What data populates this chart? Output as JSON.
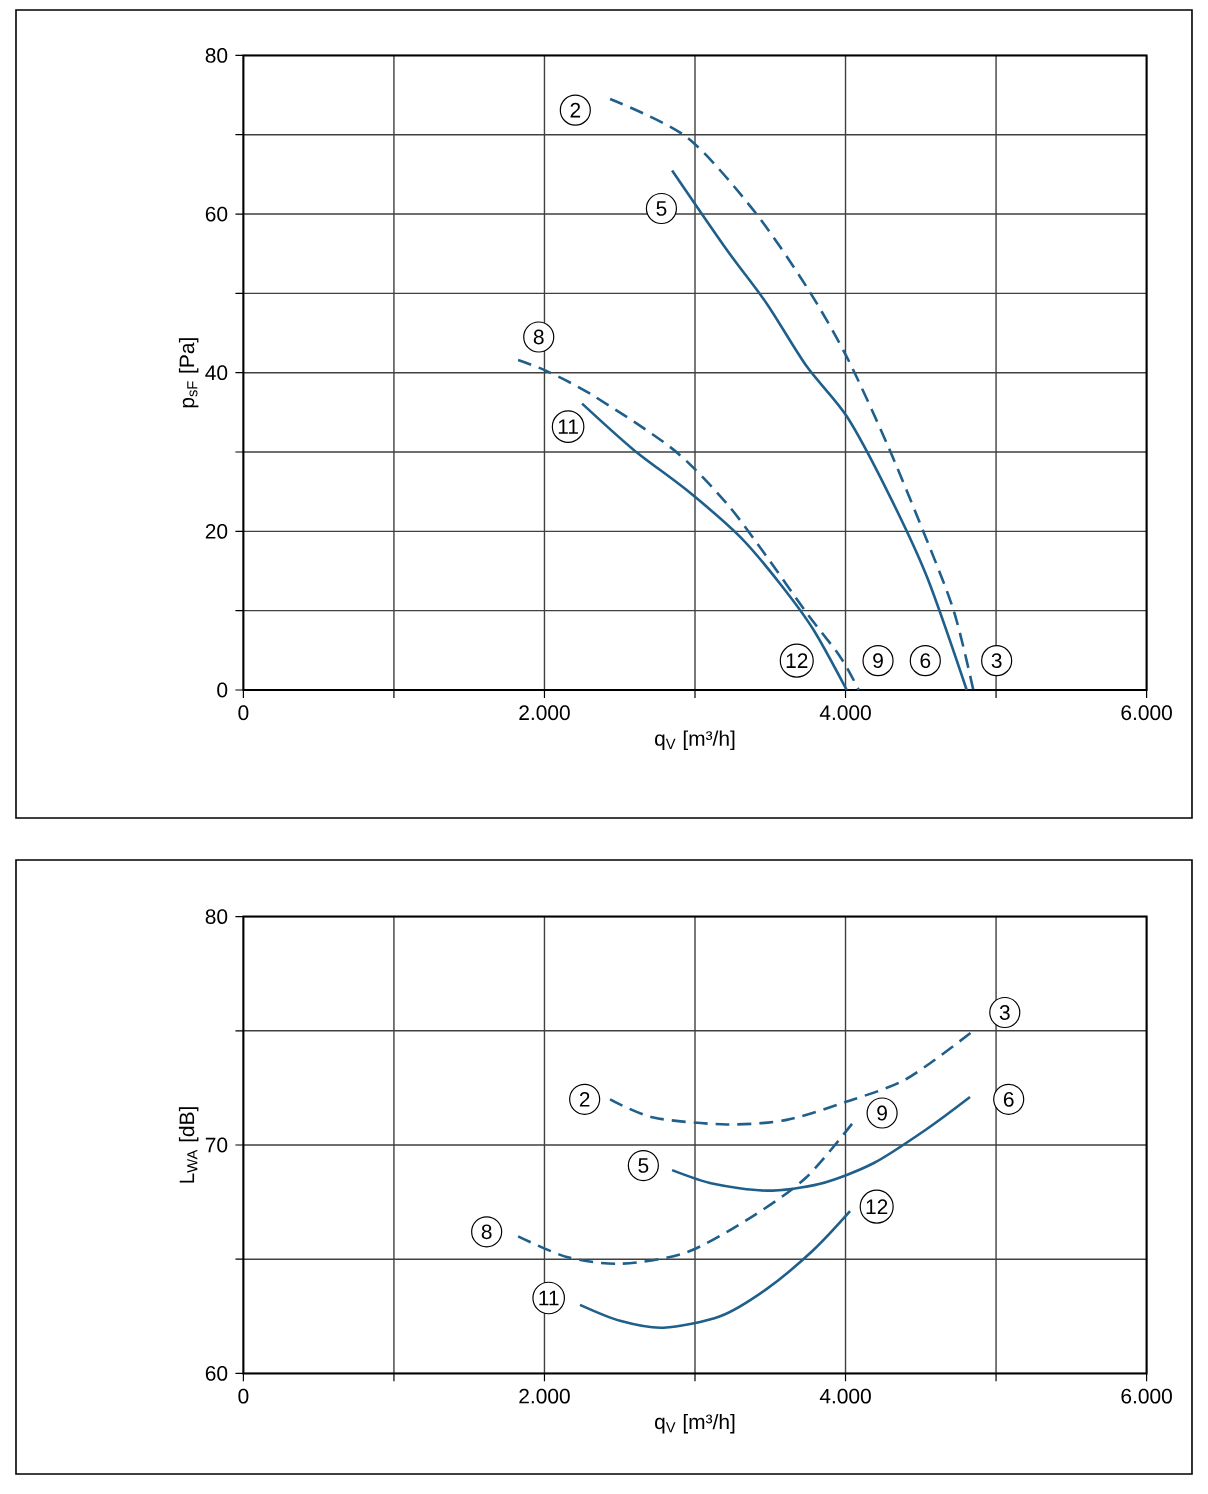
{
  "chart_data": [
    {
      "type": "line",
      "xlabel": "q$_{V}$ [m³/h]",
      "ylabel": "p$_{sF}$ [Pa]",
      "grid": true,
      "xlim": [
        0,
        6000
      ],
      "ylim": [
        0,
        80
      ],
      "xticks": [
        0,
        {
          "value": 1000,
          "label": null
        },
        {
          "value": 2000,
          "label": "2.000"
        },
        {
          "value": 3000,
          "label": null
        },
        {
          "value": 4000,
          "label": "4.000"
        },
        {
          "value": 5000,
          "label": null
        },
        {
          "value": 6000,
          "label": "6.000"
        }
      ],
      "yticks": [
        0,
        {
          "value": 10,
          "label": null
        },
        20,
        {
          "value": 30,
          "label": null
        },
        40,
        {
          "value": 50,
          "label": null
        },
        60,
        {
          "value": 70,
          "label": null
        },
        80
      ],
      "series": [
        {
          "color": "#1f5f8b",
          "line_style": "dashed",
          "x": [
            2436,
            2945,
            3388,
            3742,
            4008,
            4274,
            4495,
            4717,
            4849
          ],
          "values": [
            74.5,
            69.7,
            60.5,
            50.8,
            42,
            31.1,
            21,
            10.1,
            0
          ]
        },
        {
          "color": "#1f5f8b",
          "line_style": "solid",
          "x": [
            2848,
            3211,
            3477,
            3742,
            4008,
            4274,
            4540,
            4805
          ],
          "values": [
            65.5,
            55.5,
            48.7,
            40.8,
            34.5,
            25.2,
            14.3,
            0
          ]
        },
        {
          "color": "#1f5f8b",
          "line_style": "dashed",
          "x": [
            1825,
            2015,
            2325,
            2857,
            3211,
            3477,
            3742,
            3964,
            4088
          ],
          "values": [
            41.6,
            40.2,
            37.1,
            30.3,
            23.5,
            16.8,
            9.7,
            4.2,
            0
          ]
        },
        {
          "color": "#1f5f8b",
          "line_style": "solid",
          "x": [
            2250,
            2591,
            2945,
            3300,
            3565,
            3787,
            4008
          ],
          "values": [
            36.1,
            30.3,
            25.2,
            19.3,
            13.4,
            7.6,
            0
          ]
        }
      ],
      "annotations": [
        {
          "text": "2",
          "x": 2205,
          "y": 73.1
        },
        {
          "text": "5",
          "x": 2777,
          "y": 60.7
        },
        {
          "text": "8",
          "x": 1962,
          "y": 44.5
        },
        {
          "text": "11",
          "x": 2157,
          "y": 33.2
        },
        {
          "text": "12",
          "x": 3676,
          "y": 3.7
        },
        {
          "text": "9",
          "x": 4216,
          "y": 3.7
        },
        {
          "text": "6",
          "x": 4530,
          "y": 3.7
        },
        {
          "text": "3",
          "x": 5004,
          "y": 3.7
        }
      ]
    },
    {
      "type": "line",
      "xlabel": "q$_{V}$ [m³/h]",
      "ylabel": "L$_{WA}$ [dB]",
      "grid": true,
      "xlim": [
        0,
        6000
      ],
      "ylim": [
        60,
        80
      ],
      "xticks": [
        0,
        {
          "value": 1000,
          "label": null
        },
        {
          "value": 2000,
          "label": "2.000"
        },
        {
          "value": 3000,
          "label": null
        },
        {
          "value": 4000,
          "label": "4.000"
        },
        {
          "value": 5000,
          "label": null
        },
        {
          "value": 6000,
          "label": "6.000"
        }
      ],
      "yticks": [
        60,
        {
          "value": 65,
          "label": null
        },
        70,
        {
          "value": 75,
          "label": null
        },
        80
      ],
      "series": [
        {
          "color": "#1f5f8b",
          "line_style": "dashed",
          "x": [
            2436,
            2724,
            3211,
            3609,
            4008,
            4407,
            4849
          ],
          "values": [
            72.0,
            71.2,
            70.9,
            71.1,
            71.9,
            72.9,
            75.0
          ]
        },
        {
          "color": "#1f5f8b",
          "line_style": "solid",
          "x": [
            2848,
            3122,
            3477,
            3831,
            4185,
            4540,
            4827
          ],
          "values": [
            68.9,
            68.3,
            68.0,
            68.3,
            69.2,
            70.7,
            72.1
          ]
        },
        {
          "color": "#1f5f8b",
          "line_style": "dashed",
          "x": [
            1825,
            2148,
            2502,
            2945,
            3388,
            3742,
            4052
          ],
          "values": [
            66.0,
            65.1,
            64.8,
            65.3,
            66.9,
            68.6,
            71.0
          ]
        },
        {
          "color": "#1f5f8b",
          "line_style": "solid",
          "x": [
            2236,
            2502,
            2790,
            3167,
            3477,
            3787,
            4030
          ],
          "values": [
            63.0,
            62.3,
            62.0,
            62.5,
            63.7,
            65.4,
            67.1
          ]
        }
      ],
      "annotations": [
        {
          "text": "2",
          "x": 2267,
          "y": 72.0
        },
        {
          "text": "3",
          "x": 5058,
          "y": 75.8
        },
        {
          "text": "9",
          "x": 4243,
          "y": 71.4
        },
        {
          "text": "6",
          "x": 5084,
          "y": 72.0
        },
        {
          "text": "5",
          "x": 2657,
          "y": 69.1
        },
        {
          "text": "8",
          "x": 1616,
          "y": 66.2
        },
        {
          "text": "12",
          "x": 4207,
          "y": 67.3
        },
        {
          "text": "11",
          "x": 2028,
          "y": 63.3
        }
      ]
    }
  ]
}
